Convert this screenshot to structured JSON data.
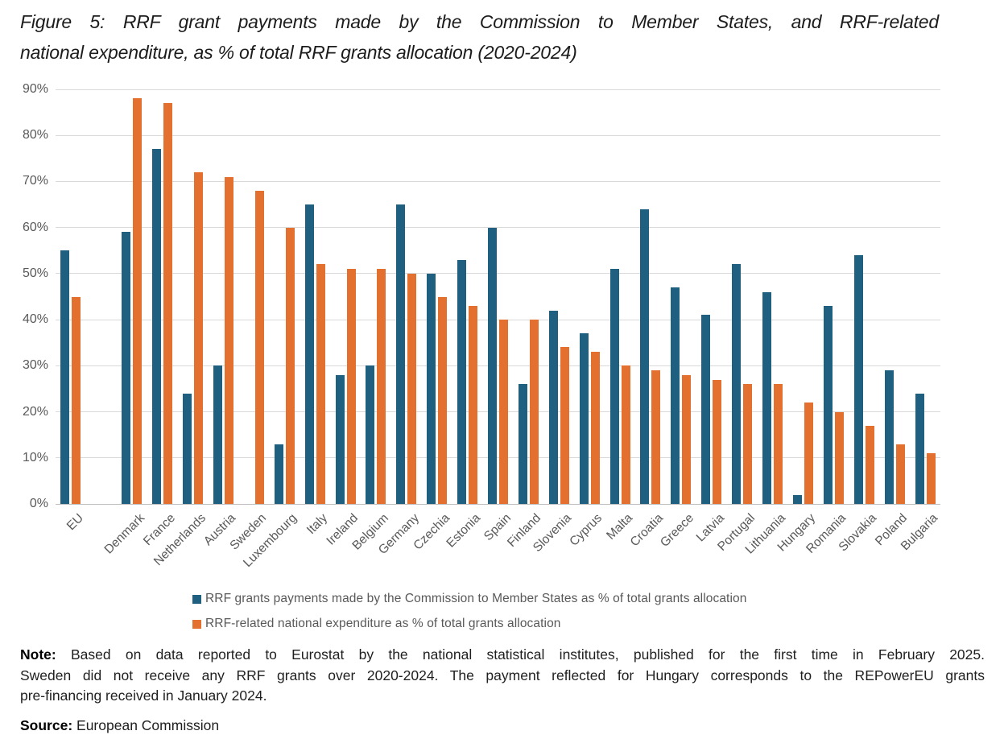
{
  "chart_data": {
    "type": "bar",
    "title_line1": "Figure 5: RRF grant payments made by the Commission to Member States, and RRF-related",
    "title_line2": "national expenditure, as % of total RRF grants allocation (2020-2024)",
    "xlabel": "",
    "ylabel": "",
    "ylim": [
      0,
      90
    ],
    "ytick_step": 10,
    "ytick_suffix": "%",
    "grid": true,
    "legend_position": "bottom",
    "categories": [
      "EU",
      "",
      "Denmark",
      "France",
      "Netherlands",
      "Austria",
      "Sweden",
      "Luxembourg",
      "Italy",
      "Ireland",
      "Belgium",
      "Germany",
      "Czechia",
      "Estonia",
      "Spain",
      "Finland",
      "Slovenia",
      "Cyprus",
      "Malta",
      "Croatia",
      "Greece",
      "Latvia",
      "Portugal",
      "Lithuania",
      "Hungary",
      "Romania",
      "Slovakia",
      "Poland",
      "Bulgaria"
    ],
    "series": [
      {
        "name": "RRF grants payments made by the Commission to Member States as % of total grants allocation",
        "color": "#1F5F7F",
        "values": [
          55,
          null,
          59,
          77,
          24,
          30,
          null,
          13,
          65,
          28,
          30,
          65,
          50,
          53,
          60,
          26,
          42,
          37,
          51,
          64,
          47,
          41,
          52,
          46,
          2,
          43,
          54,
          29,
          24
        ]
      },
      {
        "name": "RRF-related national expenditure as % of total grants allocation",
        "color": "#E4702F",
        "values": [
          45,
          null,
          88,
          87,
          72,
          71,
          68,
          60,
          52,
          51,
          51,
          50,
          45,
          43,
          40,
          40,
          34,
          33,
          30,
          29,
          28,
          27,
          26,
          26,
          22,
          20,
          17,
          13,
          11
        ]
      }
    ]
  },
  "note": {
    "label": "Note:",
    "line1": "Based on data reported to Eurostat by the national statistical institutes, published for the first time in February 2025.",
    "line2": "Sweden did not receive any RRF grants over 2020-2024. The payment reflected for Hungary corresponds to the REPowerEU grants",
    "line3": "pre-financing received in January 2024."
  },
  "source": {
    "label": "Source:",
    "text": "European Commission"
  },
  "colors": {
    "grid": "#D9D9D9",
    "axis_line": "#BFBFBF",
    "tick_text": "#595959",
    "title_text": "#1C1C1C",
    "note_text": "#1F1F1F"
  }
}
